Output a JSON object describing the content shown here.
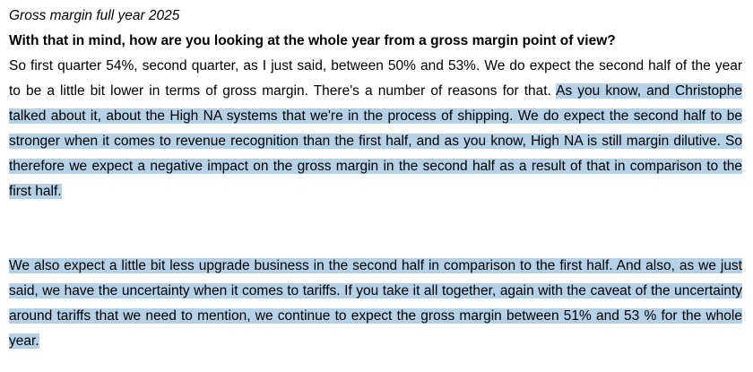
{
  "document": {
    "heading": "Gross margin full year 2025",
    "question": "With that in mind, how are you looking at the whole year from a gross margin point of view?",
    "answer": {
      "p1_normal": "So first quarter 54%, second quarter, as I just said, between 50% and 53%. We do expect the second half of the year to be a little bit lower in terms of gross margin. There's a number of reasons for that. ",
      "p1_highlighted": "As you know, and Christophe talked about it, about the High NA systems that we're in the process of shipping. We do expect the second half to be stronger when it comes to revenue recognition than the first half, and as you know, High NA is still margin dilutive. So therefore we expect a negative impact on the gross margin in the second half as a result of that in comparison to the first half.",
      "p2_highlighted": "We also expect a little bit less upgrade business in the second half in comparison to the first half. And also, as we just said, we have the uncertainty when it comes to tariffs. If you take it all together, again with the caveat of the uncertainty around tariffs that we need to mention, we continue to expect the gross margin between 51% and 53 % for the whole year."
    }
  },
  "colors": {
    "highlight": "#b5d1e8",
    "text": "#000000",
    "background": "#ffffff"
  }
}
